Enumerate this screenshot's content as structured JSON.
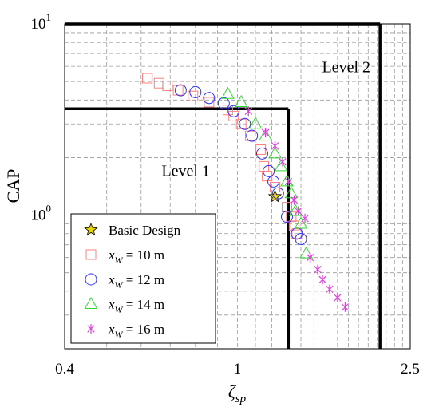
{
  "chart_data": {
    "type": "scatter",
    "title": "",
    "xlabel": {
      "base": "ζ",
      "sub": "sp"
    },
    "ylabel": "CAP",
    "xscale": "log",
    "yscale": "log",
    "xlim": [
      0.4,
      2.5
    ],
    "ylim": [
      0.2,
      10
    ],
    "grid": "dashed",
    "x_tick_labels": [
      {
        "value": 0.4,
        "text": "0.4"
      },
      {
        "value": 1,
        "text": "1"
      },
      {
        "value": 2.5,
        "text": "2.5"
      }
    ],
    "y_tick_labels": [
      {
        "value": 1,
        "base": "10",
        "exp": "0"
      },
      {
        "value": 10,
        "base": "10",
        "exp": "1"
      }
    ],
    "levels": [
      {
        "label": "Level 1",
        "x_max": 1.31,
        "y_max": 3.6,
        "label_at": [
          0.76,
          1.6
        ]
      },
      {
        "label": "Level 2",
        "x_max": 2.13,
        "y_max": 10,
        "label_at": [
          1.78,
          5.6
        ]
      }
    ],
    "legend_position": "bottom-left",
    "series": [
      {
        "name": "Basic Design",
        "marker": "star",
        "color": "#e8d400",
        "points": [
          [
            1.22,
            1.25
          ]
        ]
      },
      {
        "name": "x_W = 10 m",
        "legend": {
          "var": "x",
          "sub": "W",
          "rest": " = 10 m"
        },
        "marker": "square",
        "color": "#ff8080",
        "points": [
          [
            0.62,
            5.2
          ],
          [
            0.66,
            4.9
          ],
          [
            0.69,
            4.75
          ],
          [
            0.73,
            4.5
          ],
          [
            0.79,
            4.2
          ],
          [
            0.86,
            3.9
          ],
          [
            0.95,
            3.55
          ],
          [
            0.98,
            3.3
          ],
          [
            1.02,
            3.0
          ],
          [
            1.07,
            2.6
          ],
          [
            1.13,
            2.2
          ],
          [
            1.15,
            1.8
          ],
          [
            1.17,
            1.6
          ],
          [
            1.22,
            1.4
          ],
          [
            1.3,
            1.1
          ],
          [
            1.33,
            0.98
          ],
          [
            1.35,
            0.88
          ],
          [
            1.37,
            0.8
          ]
        ]
      },
      {
        "name": "x_W = 12 m",
        "legend": {
          "var": "x",
          "sub": "W",
          "rest": " = 12 m"
        },
        "marker": "circle",
        "color": "#3030ff",
        "points": [
          [
            0.74,
            4.5
          ],
          [
            0.8,
            4.4
          ],
          [
            0.86,
            4.1
          ],
          [
            0.93,
            3.85
          ],
          [
            0.98,
            3.5
          ],
          [
            1.04,
            3.0
          ],
          [
            1.08,
            2.6
          ],
          [
            1.14,
            2.1
          ],
          [
            1.18,
            1.7
          ],
          [
            1.21,
            1.5
          ],
          [
            1.24,
            1.3
          ],
          [
            1.3,
            0.98
          ],
          [
            1.37,
            0.8
          ],
          [
            1.4,
            0.75
          ]
        ]
      },
      {
        "name": "x_W = 14 m",
        "legend": {
          "var": "x",
          "sub": "W",
          "rest": " = 14 m"
        },
        "marker": "triangle",
        "color": "#30d830",
        "points": [
          [
            0.95,
            4.3
          ],
          [
            1.02,
            3.9
          ],
          [
            1.1,
            3.0
          ],
          [
            1.16,
            2.6
          ],
          [
            1.22,
            2.1
          ],
          [
            1.26,
            1.8
          ],
          [
            1.3,
            1.5
          ],
          [
            1.33,
            1.3
          ],
          [
            1.36,
            1.05
          ],
          [
            1.4,
            0.9
          ],
          [
            1.44,
            0.63
          ]
        ]
      },
      {
        "name": "x_W = 16 m",
        "legend": {
          "var": "x",
          "sub": "W",
          "rest": " = 16 m"
        },
        "marker": "asterisk",
        "color": "#e040e0",
        "points": [
          [
            1.06,
            3.5
          ],
          [
            1.16,
            2.7
          ],
          [
            1.22,
            2.3
          ],
          [
            1.27,
            1.9
          ],
          [
            1.31,
            1.5
          ],
          [
            1.35,
            1.2
          ],
          [
            1.38,
            1.05
          ],
          [
            1.43,
            0.96
          ],
          [
            1.47,
            0.6
          ],
          [
            1.53,
            0.52
          ],
          [
            1.57,
            0.46
          ],
          [
            1.63,
            0.41
          ],
          [
            1.7,
            0.37
          ],
          [
            1.77,
            0.33
          ]
        ]
      }
    ]
  }
}
